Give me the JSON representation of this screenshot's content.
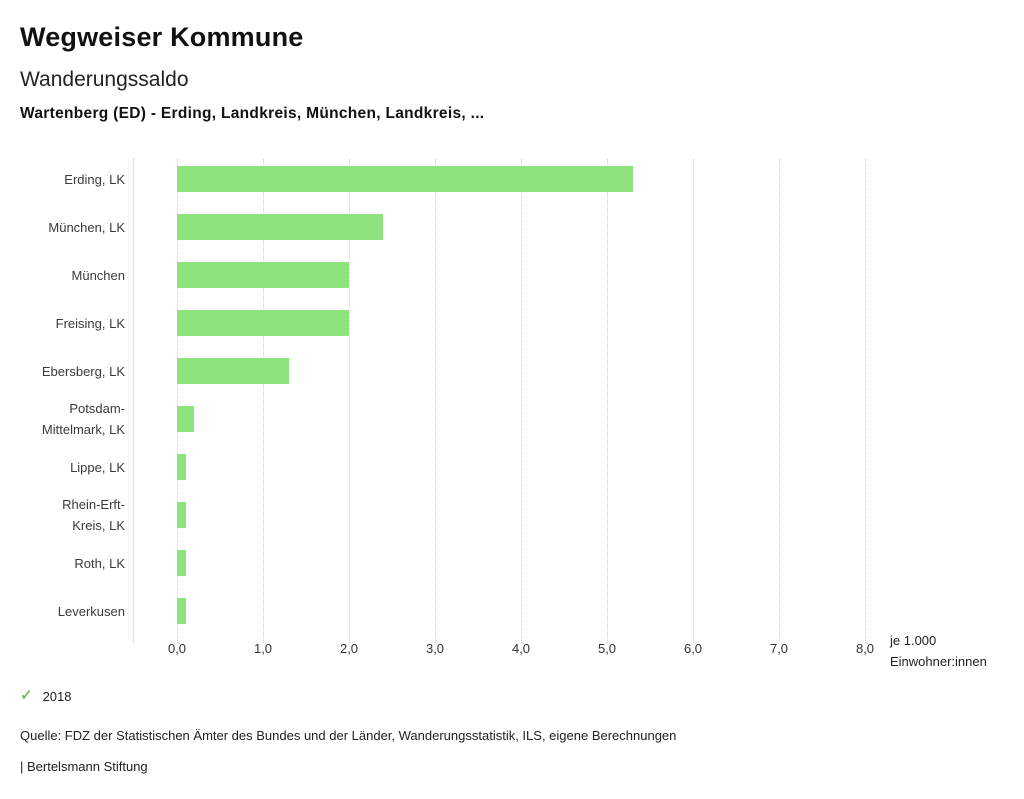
{
  "header": {
    "title": "Wegweiser Kommune",
    "subtitle": "Wanderungssaldo",
    "selection": "Wartenberg (ED) - Erding, Landkreis, München, Landkreis, ..."
  },
  "chart_data": {
    "type": "bar",
    "orientation": "horizontal",
    "categories": [
      "Erding, LK",
      "München, LK",
      "München",
      "Freising, LK",
      "Ebersberg, LK",
      "Potsdam-\nMittelmark, LK",
      "Lippe, LK",
      "Rhein-Erft-\nKreis, LK",
      "Roth, LK",
      "Leverkusen"
    ],
    "values": [
      5.3,
      2.4,
      2.0,
      2.0,
      1.3,
      0.2,
      0.1,
      0.1,
      0.1,
      0.1
    ],
    "series_name": "2018",
    "xlim": [
      0,
      8
    ],
    "x_ticks": [
      "0,0",
      "1,0",
      "2,0",
      "3,0",
      "4,0",
      "5,0",
      "6,0",
      "7,0",
      "8,0"
    ],
    "x_axis_unit_line1": "je 1.000",
    "x_axis_unit_line2": "Einwohner:innen",
    "bar_color": "#8fe37e",
    "grid": "dotted-vertical",
    "legend_position": "bottom-left"
  },
  "legend": {
    "check_icon": "✓",
    "year": "2018"
  },
  "footer": {
    "source": "Quelle: FDZ der Statistischen Ämter des Bundes und der Länder, Wanderungsstatistik, ILS, eigene Berechnungen",
    "attribution": "| Bertelsmann Stiftung"
  }
}
